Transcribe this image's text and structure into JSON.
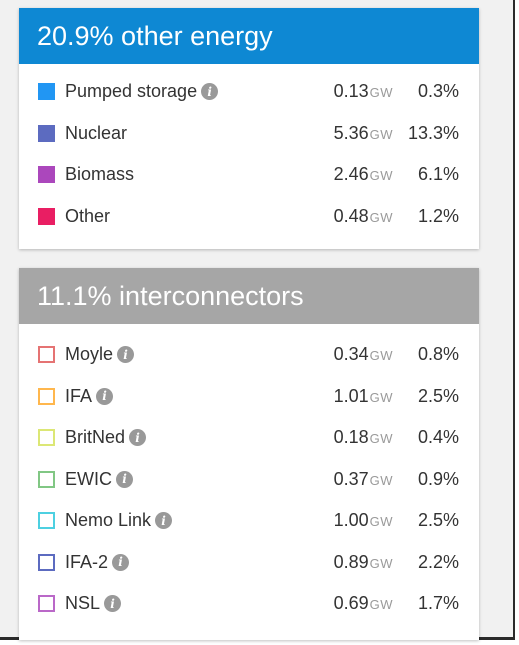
{
  "colors": {
    "other_header": "#0e88d3",
    "interconnector_header": "#a6a6a6"
  },
  "other_energy": {
    "title": "20.9% other energy",
    "rows": [
      {
        "name": "Pumped storage",
        "value": "0.13",
        "unit": "GW",
        "pct": "0.3%",
        "color": "#2196f3",
        "info": true
      },
      {
        "name": "Nuclear",
        "value": "5.36",
        "unit": "GW",
        "pct": "13.3%",
        "color": "#5c6bc0",
        "info": false
      },
      {
        "name": "Biomass",
        "value": "2.46",
        "unit": "GW",
        "pct": "6.1%",
        "color": "#ab47bc",
        "info": false
      },
      {
        "name": "Other",
        "value": "0.48",
        "unit": "GW",
        "pct": "1.2%",
        "color": "#e91e63",
        "info": false
      }
    ]
  },
  "interconnectors": {
    "title": "11.1% interconnectors",
    "rows": [
      {
        "name": "Moyle",
        "value": "0.34",
        "unit": "GW",
        "pct": "0.8%",
        "color": "#e57373",
        "info": true
      },
      {
        "name": "IFA",
        "value": "1.01",
        "unit": "GW",
        "pct": "2.5%",
        "color": "#ffb74d",
        "info": true
      },
      {
        "name": "BritNed",
        "value": "0.18",
        "unit": "GW",
        "pct": "0.4%",
        "color": "#dce775",
        "info": true
      },
      {
        "name": "EWIC",
        "value": "0.37",
        "unit": "GW",
        "pct": "0.9%",
        "color": "#81c784",
        "info": true
      },
      {
        "name": "Nemo Link",
        "value": "1.00",
        "unit": "GW",
        "pct": "2.5%",
        "color": "#4dd0e1",
        "info": true
      },
      {
        "name": "IFA-2",
        "value": "0.89",
        "unit": "GW",
        "pct": "2.2%",
        "color": "#5c6bc0",
        "info": true
      },
      {
        "name": "NSL",
        "value": "0.69",
        "unit": "GW",
        "pct": "1.7%",
        "color": "#ba68c8",
        "info": true
      }
    ]
  }
}
